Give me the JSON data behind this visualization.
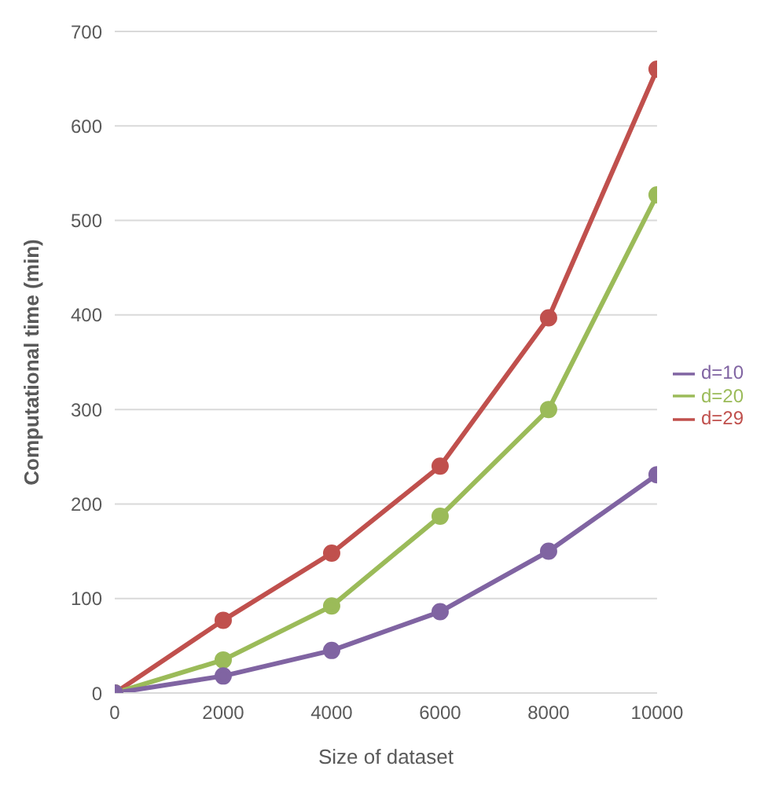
{
  "chart_data": {
    "type": "line",
    "xlabel": "Size of dataset",
    "ylabel": "Computational time (min)",
    "x": [
      0,
      2000,
      4000,
      6000,
      8000,
      10000
    ],
    "series": [
      {
        "name": "d=29",
        "color": "#c0504d",
        "values": [
          0,
          77,
          148,
          240,
          397,
          660
        ]
      },
      {
        "name": "d=20",
        "color": "#9bbb59",
        "values": [
          0,
          35,
          92,
          187,
          300,
          527
        ]
      },
      {
        "name": "d=10",
        "color": "#8064a2",
        "values": [
          0,
          18,
          45,
          86,
          150,
          231
        ]
      }
    ],
    "xlim": [
      0,
      10000
    ],
    "xticks": [
      0,
      2000,
      4000,
      6000,
      8000,
      10000
    ],
    "ylim": [
      0,
      700
    ],
    "yticks": [
      0,
      100,
      200,
      300,
      400,
      500,
      600,
      700
    ],
    "grid": "y",
    "legend": "right",
    "marker": "circle",
    "line_style": "solid"
  }
}
